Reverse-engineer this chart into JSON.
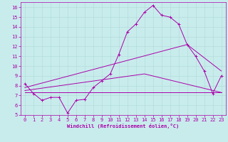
{
  "background_color": "#c8ecec",
  "grid_color": "#b0d8d8",
  "line_color": "#aa00aa",
  "xlabel": "Windchill (Refroidissement éolien,°C)",
  "xlim": [
    -0.5,
    23.5
  ],
  "ylim": [
    5,
    16.5
  ],
  "yticks": [
    5,
    6,
    7,
    8,
    9,
    10,
    11,
    12,
    13,
    14,
    15,
    16
  ],
  "xticks": [
    0,
    1,
    2,
    3,
    4,
    5,
    6,
    7,
    8,
    9,
    10,
    11,
    12,
    13,
    14,
    15,
    16,
    17,
    18,
    19,
    20,
    21,
    22,
    23
  ],
  "line1_x": [
    0,
    1,
    2,
    3,
    4,
    5,
    6,
    7,
    8,
    9,
    10,
    11,
    12,
    13,
    14,
    15,
    16,
    17,
    18,
    19,
    20,
    21,
    22,
    23
  ],
  "line1_y": [
    8.2,
    7.2,
    6.5,
    6.8,
    6.8,
    5.2,
    6.5,
    6.6,
    7.8,
    8.5,
    9.2,
    11.2,
    13.5,
    14.3,
    15.5,
    16.2,
    15.2,
    15.0,
    14.3,
    12.2,
    11.0,
    9.5,
    7.2,
    9.0
  ],
  "line2_x": [
    0,
    23
  ],
  "line2_y": [
    7.3,
    7.3
  ],
  "line3_x": [
    0,
    14,
    23
  ],
  "line3_y": [
    7.5,
    9.2,
    7.3
  ],
  "line4_x": [
    0,
    19,
    23
  ],
  "line4_y": [
    7.8,
    12.2,
    9.5
  ],
  "tick_fontsize": 5,
  "xlabel_fontsize": 5,
  "lw": 0.7
}
